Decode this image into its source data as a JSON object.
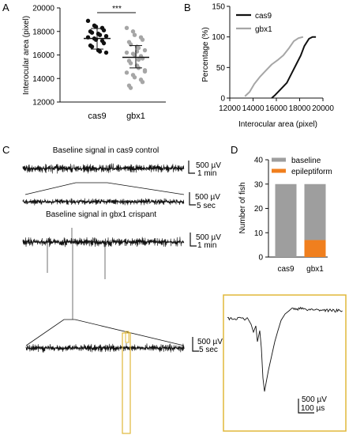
{
  "panels": {
    "a": "A",
    "b": "B",
    "c": "C",
    "d": "D"
  },
  "colors": {
    "cas9": "#111111",
    "gbx1": "#a6a6a6",
    "baseline": "#9e9e9e",
    "epileptiform": "#f07f1e",
    "highlight": "#e0b83a"
  },
  "chart_data": [
    {
      "type": "scatter",
      "panel": "A",
      "ylabel": "Interocular area (pixel)",
      "ylim": [
        12000,
        20000
      ],
      "yticks": [
        "12000",
        "14000",
        "16000",
        "18000",
        "20000"
      ],
      "categories": [
        "cas9",
        "gbx1"
      ],
      "significance": "***",
      "series": [
        {
          "name": "cas9",
          "mean": 17400,
          "sd_low": 16500,
          "sd_high": 18250,
          "values": [
            18900,
            18500,
            18400,
            18300,
            18100,
            18000,
            17900,
            17800,
            17700,
            17600,
            17500,
            17400,
            17300,
            17200,
            17000,
            16800,
            16700,
            16400,
            16300,
            16200
          ]
        },
        {
          "name": "gbx1",
          "mean": 15800,
          "sd_low": 14900,
          "sd_high": 16800,
          "values": [
            18300,
            18000,
            17700,
            17500,
            17300,
            17100,
            16900,
            16700,
            16600,
            16400,
            16200,
            16100,
            16000,
            15900,
            15700,
            15500,
            15300,
            15100,
            14900,
            14700,
            14500,
            14300,
            14100,
            13900,
            13700,
            13400,
            13200,
            16300,
            15600,
            14600
          ]
        }
      ]
    },
    {
      "type": "line",
      "panel": "B",
      "xlabel": "Interocular area (pixel)",
      "ylabel": "Percentage (%)",
      "xlim": [
        12000,
        20000
      ],
      "ylim": [
        0,
        150
      ],
      "xticks": [
        "12000",
        "14000",
        "16000",
        "18000",
        "20000"
      ],
      "yticks": [
        "0",
        "50",
        "100",
        "150"
      ],
      "legend": "top-left",
      "series": [
        {
          "name": "cas9",
          "x": [
            15600,
            15900,
            16400,
            16900,
            17300,
            17700,
            18100,
            18400,
            18800,
            19100,
            19400
          ],
          "y": [
            0,
            5,
            15,
            25,
            40,
            55,
            70,
            85,
            97,
            100,
            100
          ]
        },
        {
          "name": "gbx1",
          "x": [
            13300,
            13700,
            14100,
            14600,
            15100,
            15600,
            16100,
            16600,
            17100,
            17500,
            17900,
            18300
          ],
          "y": [
            3,
            10,
            23,
            35,
            45,
            55,
            62,
            70,
            82,
            93,
            98,
            100
          ]
        }
      ]
    },
    {
      "type": "bar",
      "panel": "D",
      "ylabel": "Number of fish",
      "ylim": [
        0,
        40
      ],
      "yticks": [
        "0",
        "10",
        "20",
        "30",
        "40"
      ],
      "categories": [
        "cas9",
        "gbx1"
      ],
      "legend": "top",
      "series": [
        {
          "name": "epileptiform",
          "values": [
            0,
            7
          ]
        },
        {
          "name": "baseline",
          "values": [
            30,
            23
          ]
        }
      ]
    }
  ],
  "traces": {
    "title1": "Baseline signal in cas9 control",
    "title2": "Baseline signal in gbx1 crispant",
    "scalebars": [
      {
        "v": "500 µV",
        "t": "1 min"
      },
      {
        "v": "500 µV",
        "t": "5 sec"
      },
      {
        "v": "500 µV",
        "t": "1 min"
      },
      {
        "v": "500 µV",
        "t": "5 sec"
      },
      {
        "v": "500 µV",
        "t": "100 µs"
      }
    ]
  }
}
